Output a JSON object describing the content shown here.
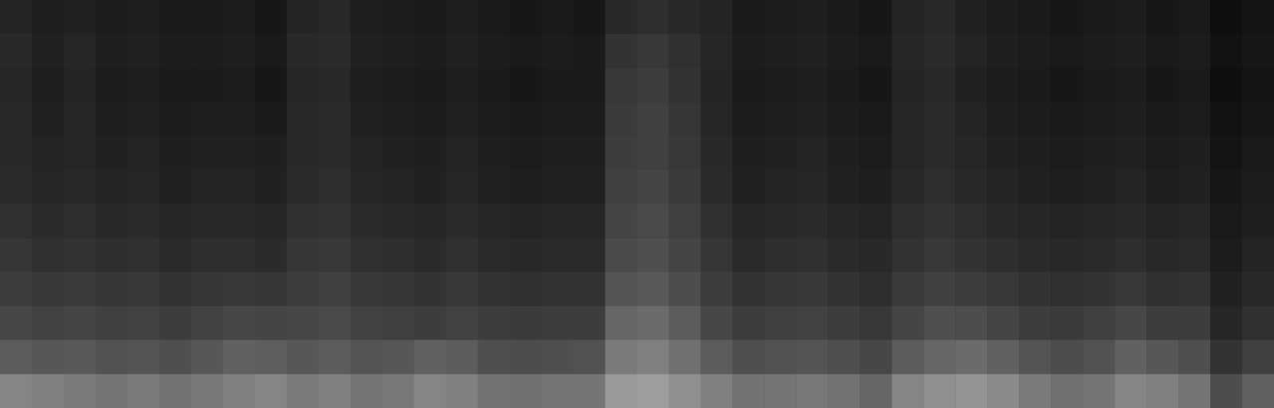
{
  "chart_data": {
    "type": "heatmap",
    "tick_labels": false,
    "zlim": [
      0,
      100
    ],
    "values": [
      [
        14,
        12,
        13,
        11,
        12,
        10,
        10,
        11,
        9,
        14,
        16,
        12,
        11,
        10,
        12,
        10,
        9,
        10,
        9,
        16,
        18,
        16,
        14,
        10,
        11,
        12,
        10,
        9,
        14,
        16,
        13,
        11,
        10,
        9,
        10,
        11,
        9,
        10,
        6,
        8
      ],
      [
        16,
        13,
        15,
        12,
        13,
        11,
        11,
        12,
        10,
        16,
        17,
        13,
        12,
        11,
        13,
        11,
        10,
        11,
        10,
        20,
        22,
        19,
        15,
        11,
        12,
        13,
        11,
        10,
        15,
        17,
        14,
        12,
        11,
        10,
        11,
        12,
        10,
        11,
        7,
        9
      ],
      [
        15,
        12,
        14,
        11,
        12,
        10,
        10,
        11,
        9,
        15,
        16,
        12,
        11,
        10,
        12,
        10,
        9,
        10,
        10,
        22,
        24,
        20,
        14,
        10,
        11,
        12,
        10,
        9,
        14,
        16,
        13,
        11,
        10,
        9,
        10,
        11,
        9,
        10,
        6,
        8
      ],
      [
        16,
        13,
        15,
        12,
        13,
        11,
        12,
        12,
        10,
        16,
        17,
        13,
        12,
        11,
        13,
        11,
        10,
        11,
        11,
        23,
        25,
        21,
        15,
        11,
        12,
        13,
        11,
        10,
        15,
        17,
        14,
        12,
        11,
        10,
        11,
        12,
        10,
        11,
        7,
        9
      ],
      [
        16,
        14,
        15,
        13,
        14,
        12,
        13,
        13,
        12,
        16,
        17,
        14,
        13,
        12,
        14,
        12,
        11,
        12,
        12,
        24,
        25,
        22,
        16,
        12,
        13,
        14,
        12,
        11,
        15,
        17,
        15,
        13,
        12,
        11,
        12,
        13,
        11,
        12,
        8,
        10
      ],
      [
        17,
        15,
        16,
        14,
        15,
        13,
        14,
        14,
        13,
        17,
        18,
        15,
        14,
        13,
        15,
        13,
        12,
        13,
        13,
        25,
        27,
        23,
        17,
        13,
        14,
        15,
        13,
        12,
        16,
        18,
        16,
        14,
        13,
        12,
        13,
        14,
        12,
        13,
        9,
        11
      ],
      [
        19,
        17,
        18,
        16,
        17,
        15,
        16,
        16,
        15,
        19,
        20,
        17,
        16,
        15,
        17,
        15,
        14,
        15,
        15,
        27,
        29,
        25,
        19,
        15,
        16,
        17,
        15,
        14,
        18,
        20,
        18,
        16,
        15,
        14,
        15,
        16,
        14,
        15,
        10,
        12
      ],
      [
        21,
        19,
        20,
        18,
        19,
        17,
        18,
        18,
        17,
        21,
        22,
        19,
        18,
        17,
        19,
        17,
        16,
        17,
        17,
        29,
        31,
        27,
        21,
        17,
        18,
        19,
        17,
        16,
        20,
        22,
        20,
        18,
        17,
        16,
        17,
        18,
        16,
        17,
        11,
        14
      ],
      [
        24,
        22,
        23,
        21,
        22,
        20,
        21,
        22,
        21,
        24,
        25,
        22,
        21,
        20,
        22,
        20,
        19,
        20,
        20,
        33,
        35,
        30,
        24,
        20,
        21,
        22,
        20,
        18,
        23,
        25,
        24,
        22,
        20,
        19,
        20,
        22,
        19,
        20,
        13,
        16
      ],
      [
        28,
        26,
        27,
        25,
        26,
        24,
        26,
        28,
        27,
        28,
        29,
        26,
        25,
        24,
        26,
        24,
        23,
        24,
        24,
        40,
        42,
        36,
        28,
        24,
        25,
        26,
        24,
        22,
        27,
        31,
        30,
        27,
        24,
        23,
        25,
        28,
        24,
        24,
        15,
        19
      ],
      [
        36,
        34,
        35,
        32,
        33,
        31,
        34,
        38,
        37,
        34,
        36,
        33,
        34,
        38,
        36,
        31,
        30,
        31,
        32,
        48,
        50,
        44,
        36,
        31,
        32,
        33,
        31,
        28,
        36,
        40,
        42,
        38,
        33,
        30,
        32,
        38,
        34,
        31,
        20,
        25
      ],
      [
        52,
        50,
        48,
        46,
        48,
        45,
        47,
        50,
        52,
        48,
        50,
        46,
        47,
        52,
        50,
        45,
        44,
        46,
        46,
        60,
        62,
        56,
        50,
        45,
        46,
        47,
        45,
        40,
        52,
        56,
        58,
        54,
        48,
        44,
        46,
        52,
        50,
        46,
        30,
        38
      ]
    ]
  }
}
